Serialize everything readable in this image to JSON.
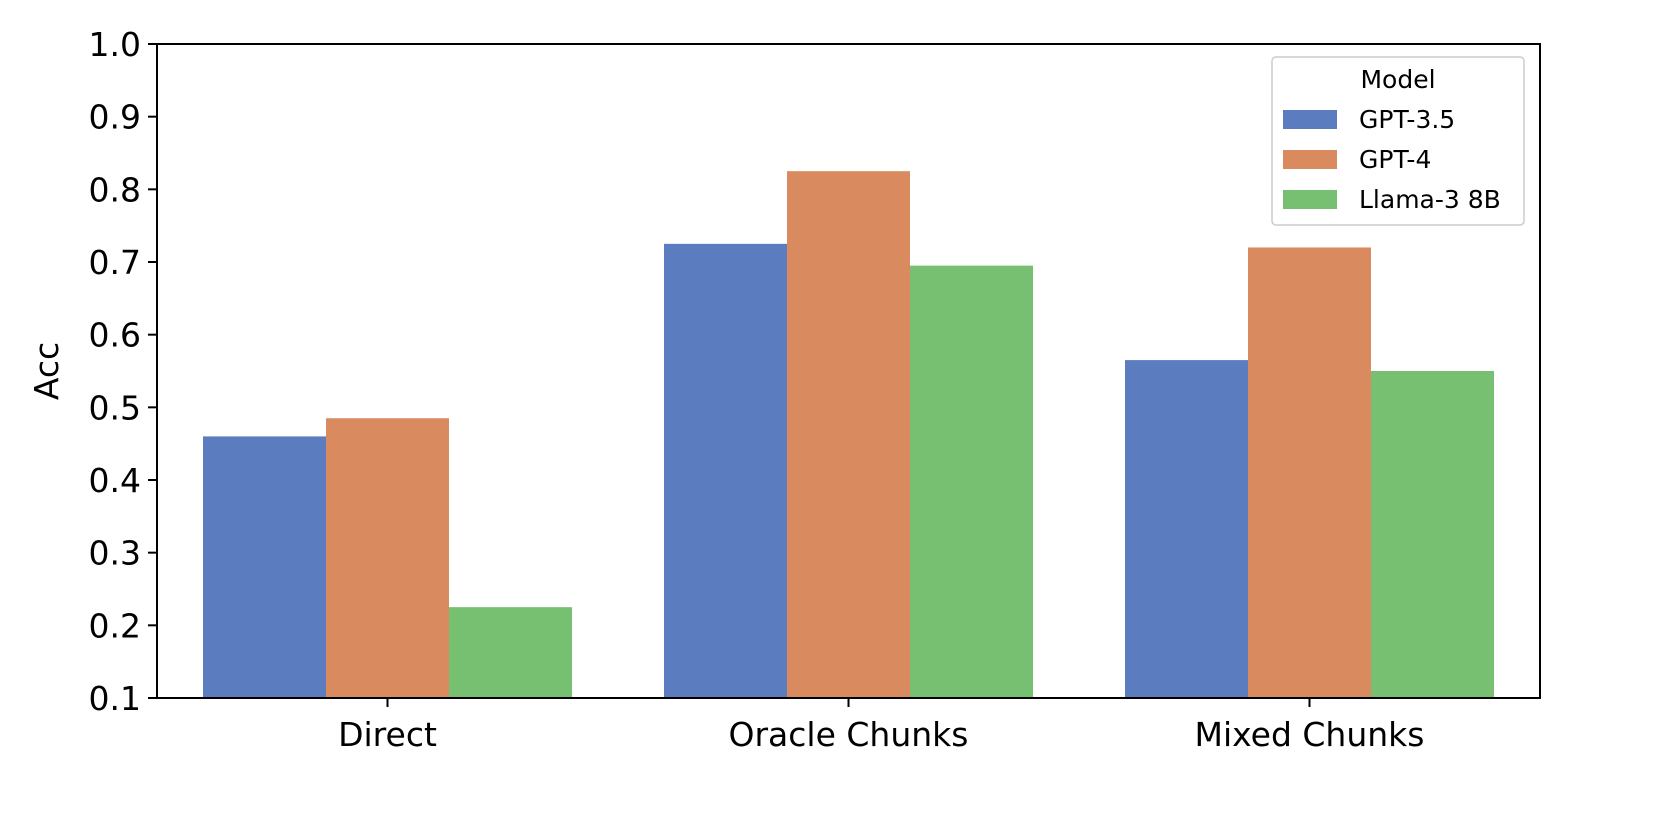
{
  "chart_data": {
    "type": "bar",
    "title": "",
    "xlabel": "",
    "ylabel": "Acc",
    "ylim": [
      0.1,
      1.0
    ],
    "yticks": [
      0.1,
      0.2,
      0.3,
      0.4,
      0.5,
      0.6,
      0.7,
      0.8,
      0.9,
      1.0
    ],
    "ytick_labels": [
      "0.1",
      "0.2",
      "0.3",
      "0.4",
      "0.5",
      "0.6",
      "0.7",
      "0.8",
      "0.9",
      "1.0"
    ],
    "categories": [
      "Direct",
      "Oracle Chunks",
      "Mixed Chunks"
    ],
    "series": [
      {
        "name": "GPT-3.5",
        "color": "#5b7dbf",
        "values": [
          0.46,
          0.725,
          0.565
        ]
      },
      {
        "name": "GPT-4",
        "color": "#d98a5f",
        "values": [
          0.485,
          0.825,
          0.72
        ]
      },
      {
        "name": "Llama-3 8B",
        "color": "#77c071",
        "values": [
          0.225,
          0.695,
          0.55
        ]
      }
    ],
    "grid": false,
    "legend": {
      "title": "Model",
      "placement": "top-right"
    }
  }
}
